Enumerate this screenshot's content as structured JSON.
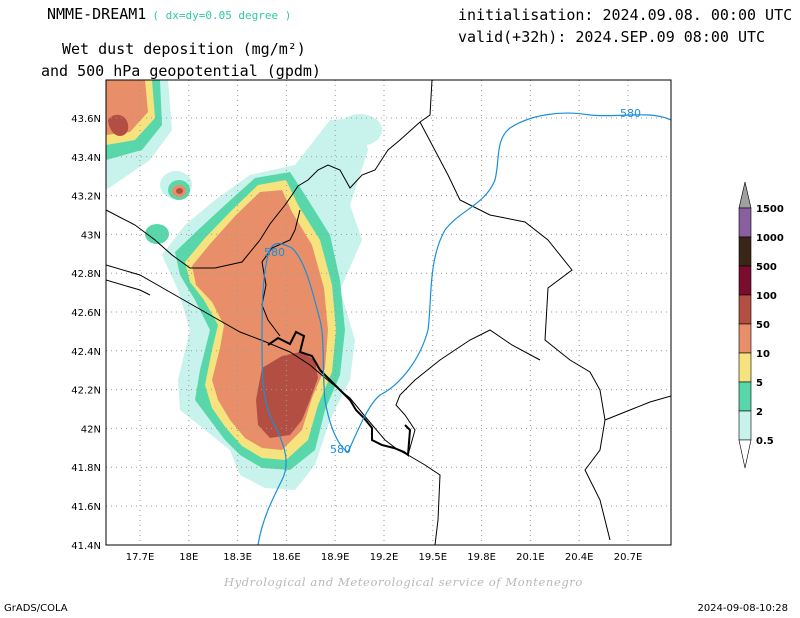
{
  "title": {
    "model": "NMME-DREAM1",
    "resolution": "( dx=dy=0.05 degree )",
    "variable": "Wet dust deposition (mg/m²)",
    "overlay": "and 500 hPa geopotential (gpdm)",
    "initialisation": "initialisation: 2024.09.08. 00:00 UTC",
    "valid": "valid(+32h): 2024.SEP.09 08:00 UTC"
  },
  "map": {
    "lon_labels": [
      "17.7E",
      "18E",
      "18.3E",
      "18.6E",
      "18.9E",
      "19.2E",
      "19.5E",
      "19.8E",
      "20.1E",
      "20.4E",
      "20.7E"
    ],
    "lat_labels": [
      "43.6N",
      "43.4N",
      "43.2N",
      "43N",
      "42.8N",
      "42.6N",
      "42.4N",
      "42.2N",
      "42N",
      "41.8N",
      "41.6N",
      "41.4N"
    ],
    "contour_labels": [
      "580",
      "580",
      "580"
    ],
    "contour_color": "#1a8fd8"
  },
  "colorbar": {
    "levels": [
      "1500",
      "1000",
      "500",
      "100",
      "50",
      "10",
      "5",
      "2",
      "0.5"
    ],
    "colors": [
      "#a0a0a0",
      "#8a5fa0",
      "#3a2616",
      "#7a0c2e",
      "#b34e42",
      "#e88f6a",
      "#f6e37e",
      "#58d8aa",
      "#c8f2ec",
      "#ffffff"
    ]
  },
  "footer": {
    "credit": "Hydrological and Meteorological service of Montenegro",
    "software": "GrADS/COLA",
    "timestamp": "2024-09-08-10:28"
  }
}
